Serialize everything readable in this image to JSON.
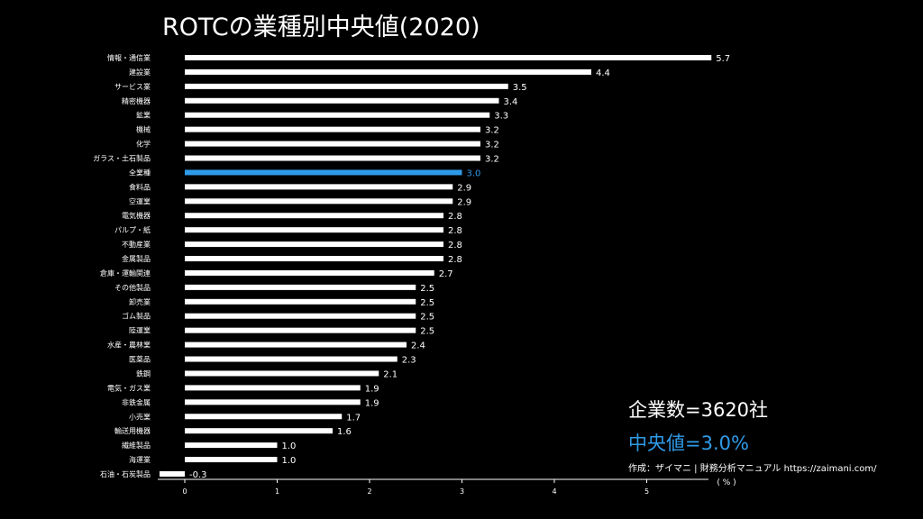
{
  "chart_data": {
    "type": "bar",
    "orientation": "horizontal",
    "title": "ROTCの業種別中央値(2020)",
    "xlabel": "( % )",
    "xlim": [
      -0.3,
      5.7
    ],
    "xticks": [
      0,
      1,
      2,
      3,
      4,
      5
    ],
    "categories": [
      "情報・通信業",
      "建設業",
      "サービス業",
      "精密機器",
      "鉱業",
      "機械",
      "化学",
      "ガラス・土石製品",
      "全業種",
      "食料品",
      "空運業",
      "電気機器",
      "パルプ・紙",
      "不動産業",
      "金属製品",
      "倉庫・運輸関連",
      "その他製品",
      "卸売業",
      "ゴム製品",
      "陸運業",
      "水産・農林業",
      "医薬品",
      "鉄鋼",
      "電気・ガス業",
      "非鉄金属",
      "小売業",
      "輸送用機器",
      "繊維製品",
      "海運業",
      "石油・石炭製品"
    ],
    "values": [
      5.7,
      4.4,
      3.5,
      3.4,
      3.3,
      3.2,
      3.2,
      3.2,
      3.0,
      2.9,
      2.9,
      2.8,
      2.8,
      2.8,
      2.8,
      2.7,
      2.5,
      2.5,
      2.5,
      2.5,
      2.4,
      2.3,
      2.1,
      1.9,
      1.9,
      1.7,
      1.6,
      1.0,
      1.0,
      -0.3
    ],
    "value_labels": [
      "5.7",
      "4.4",
      "3.5",
      "3.4",
      "3.3",
      "3.2",
      "3.2",
      "3.2",
      "3.0",
      "2.9",
      "2.9",
      "2.8",
      "2.8",
      "2.8",
      "2.8",
      "2.7",
      "2.5",
      "2.5",
      "2.5",
      "2.5",
      "2.4",
      "2.3",
      "2.1",
      "1.9",
      "1.9",
      "1.7",
      "1.6",
      "1.0",
      "1.0",
      "-0.3"
    ],
    "highlight_category": "全業種",
    "bar_color": "#ffffff",
    "highlight_color": "#2f9be8"
  },
  "stats": {
    "company_count": "企業数=3620社",
    "median": "中央値=3.0%",
    "median_color": "#2f9be8"
  },
  "credit": "作成：ザイマニ | 財務分析マニュアル https://zaimani.com/"
}
